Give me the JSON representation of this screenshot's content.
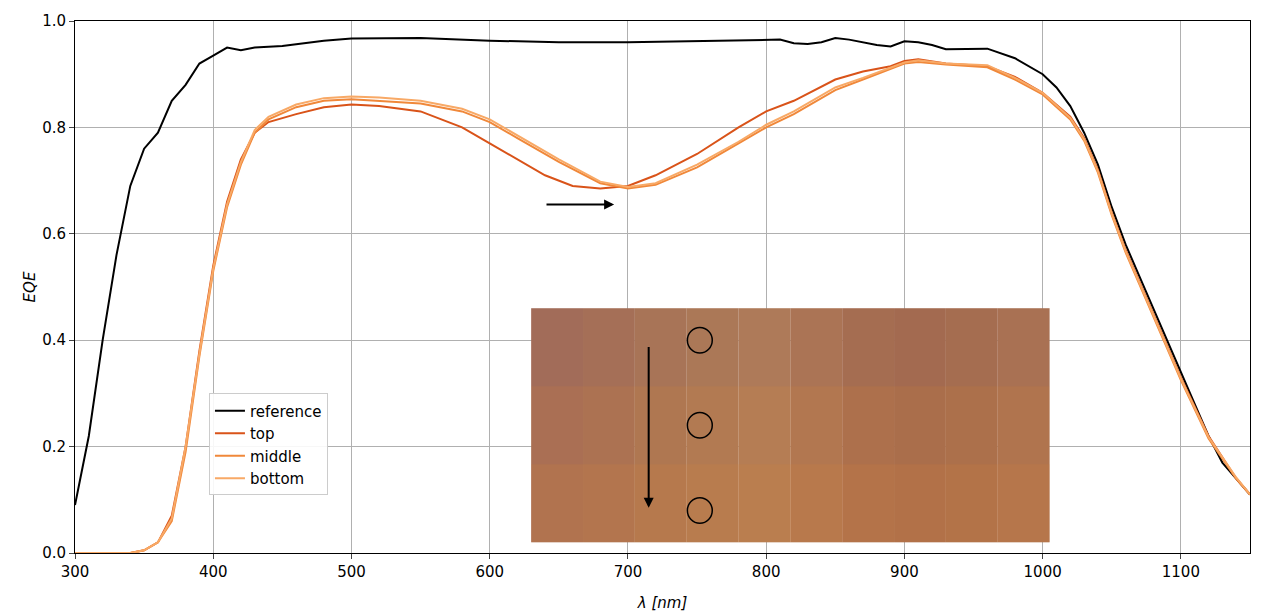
{
  "chart_data": {
    "type": "line",
    "x_label": "λ [nm]",
    "y_label": "EQE",
    "xlim": [
      300,
      1150
    ],
    "ylim": [
      0,
      1
    ],
    "xticks": [
      300,
      400,
      500,
      600,
      700,
      800,
      900,
      1000,
      1100
    ],
    "yticks": [
      {
        "value": 0,
        "label": "0.0"
      },
      0.2,
      0.4,
      0.6,
      0.8,
      {
        "value": 1,
        "label": "1.0"
      }
    ],
    "grid": true,
    "legend": "lower left",
    "series": [
      {
        "name": "reference",
        "color": "#000000",
        "x": [
          300,
          310,
          320,
          330,
          340,
          350,
          360,
          370,
          380,
          390,
          400,
          410,
          420,
          430,
          450,
          480,
          500,
          550,
          600,
          650,
          700,
          750,
          800,
          810,
          820,
          830,
          840,
          850,
          860,
          880,
          890,
          900,
          910,
          920,
          930,
          950,
          960,
          980,
          1000,
          1010,
          1020,
          1030,
          1040,
          1050,
          1060,
          1070,
          1080,
          1090,
          1100,
          1110,
          1120,
          1130,
          1140,
          1150
        ],
        "values": [
          0.09,
          0.22,
          0.4,
          0.56,
          0.69,
          0.76,
          0.79,
          0.85,
          0.88,
          0.92,
          0.935,
          0.95,
          0.945,
          0.95,
          0.953,
          0.963,
          0.967,
          0.968,
          0.963,
          0.96,
          0.96,
          0.962,
          0.965,
          0.965,
          0.958,
          0.957,
          0.96,
          0.968,
          0.965,
          0.955,
          0.952,
          0.962,
          0.96,
          0.955,
          0.947,
          0.948,
          0.948,
          0.93,
          0.9,
          0.875,
          0.84,
          0.79,
          0.73,
          0.65,
          0.58,
          0.52,
          0.46,
          0.4,
          0.34,
          0.28,
          0.22,
          0.17,
          0.14,
          0.11
        ]
      },
      {
        "name": "top",
        "color": "#d95319",
        "x": [
          300,
          340,
          350,
          360,
          370,
          380,
          390,
          400,
          410,
          420,
          430,
          440,
          460,
          480,
          500,
          520,
          550,
          580,
          600,
          620,
          640,
          660,
          680,
          700,
          720,
          750,
          780,
          800,
          820,
          850,
          870,
          890,
          900,
          910,
          930,
          960,
          980,
          1000,
          1020,
          1030,
          1040,
          1050,
          1060,
          1070,
          1080,
          1090,
          1100,
          1120,
          1140,
          1150
        ],
        "values": [
          0.0,
          0.0,
          0.005,
          0.02,
          0.07,
          0.2,
          0.38,
          0.54,
          0.66,
          0.74,
          0.79,
          0.81,
          0.825,
          0.838,
          0.843,
          0.84,
          0.83,
          0.8,
          0.77,
          0.74,
          0.71,
          0.69,
          0.685,
          0.69,
          0.71,
          0.75,
          0.8,
          0.83,
          0.85,
          0.89,
          0.905,
          0.915,
          0.925,
          0.928,
          0.92,
          0.915,
          0.895,
          0.865,
          0.82,
          0.78,
          0.72,
          0.64,
          0.57,
          0.51,
          0.45,
          0.39,
          0.33,
          0.22,
          0.14,
          0.11
        ]
      },
      {
        "name": "middle",
        "color": "#f0883a",
        "x": [
          300,
          340,
          350,
          360,
          370,
          380,
          390,
          400,
          410,
          420,
          430,
          440,
          460,
          480,
          500,
          520,
          550,
          580,
          600,
          620,
          650,
          680,
          700,
          720,
          750,
          780,
          800,
          820,
          850,
          870,
          890,
          900,
          910,
          930,
          960,
          980,
          1000,
          1020,
          1030,
          1040,
          1050,
          1060,
          1070,
          1080,
          1090,
          1100,
          1120,
          1140,
          1150
        ],
        "values": [
          0.0,
          0.0,
          0.005,
          0.02,
          0.06,
          0.19,
          0.37,
          0.53,
          0.65,
          0.73,
          0.79,
          0.815,
          0.838,
          0.85,
          0.853,
          0.85,
          0.845,
          0.83,
          0.81,
          0.78,
          0.735,
          0.695,
          0.685,
          0.692,
          0.725,
          0.77,
          0.8,
          0.825,
          0.87,
          0.89,
          0.91,
          0.92,
          0.923,
          0.918,
          0.913,
          0.89,
          0.862,
          0.815,
          0.775,
          0.715,
          0.635,
          0.565,
          0.505,
          0.445,
          0.385,
          0.325,
          0.215,
          0.14,
          0.11
        ]
      },
      {
        "name": "bottom",
        "color": "#f8a966",
        "x": [
          300,
          340,
          350,
          360,
          370,
          380,
          390,
          400,
          410,
          420,
          430,
          440,
          460,
          480,
          500,
          520,
          550,
          580,
          600,
          620,
          650,
          680,
          700,
          720,
          750,
          780,
          800,
          820,
          850,
          870,
          890,
          900,
          910,
          930,
          960,
          980,
          1000,
          1020,
          1030,
          1040,
          1050,
          1060,
          1070,
          1080,
          1090,
          1100,
          1120,
          1140,
          1150
        ],
        "values": [
          0.0,
          0.0,
          0.005,
          0.02,
          0.065,
          0.2,
          0.375,
          0.535,
          0.655,
          0.735,
          0.795,
          0.82,
          0.843,
          0.855,
          0.858,
          0.856,
          0.85,
          0.835,
          0.815,
          0.785,
          0.74,
          0.698,
          0.688,
          0.695,
          0.73,
          0.773,
          0.805,
          0.83,
          0.875,
          0.893,
          0.912,
          0.922,
          0.926,
          0.92,
          0.917,
          0.893,
          0.865,
          0.818,
          0.778,
          0.718,
          0.638,
          0.568,
          0.508,
          0.448,
          0.388,
          0.328,
          0.218,
          0.142,
          0.11
        ]
      }
    ]
  }
}
